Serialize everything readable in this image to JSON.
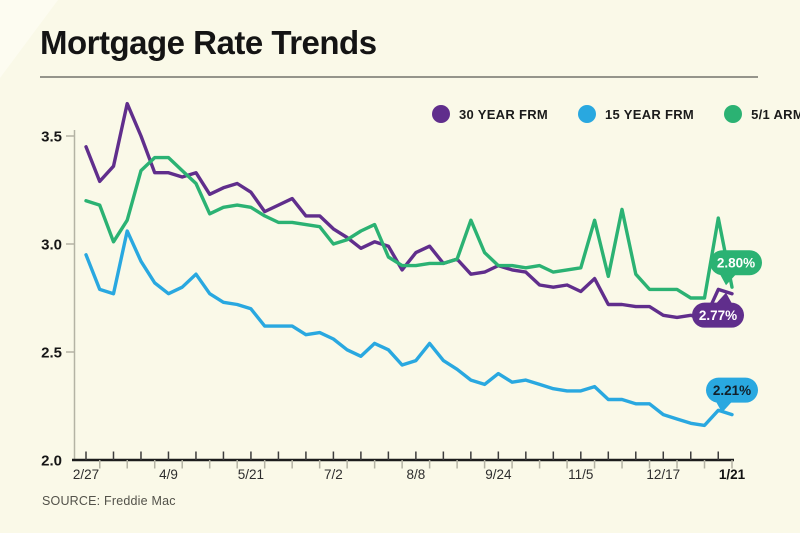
{
  "page": {
    "title": "Mortgage Rate Trends",
    "source": "SOURCE: Freddie Mac"
  },
  "colors": {
    "background": "#FAF9E8",
    "axis_dark": "#1C1C1C",
    "axis_gray": "#B4B3A4",
    "text_dark": "#1B1B1B"
  },
  "legend": [
    {
      "label": "30 YEAR FRM",
      "color": "#602E8C"
    },
    {
      "label": "15 YEAR FRM",
      "color": "#29A8E0"
    },
    {
      "label": "5/1 ARM",
      "color": "#2BB273"
    }
  ],
  "chart_data": {
    "type": "line",
    "title": "Mortgage Rate Trends",
    "xlabel": "",
    "ylabel": "",
    "ylim": [
      2.0,
      3.5
    ],
    "grid": false,
    "legend_position": "top-right",
    "y_ticks": [
      3.5,
      3.0,
      2.5,
      2.0
    ],
    "x_tick_labels": [
      {
        "text": "2/27",
        "week": 0
      },
      {
        "text": "4/9",
        "week": 6
      },
      {
        "text": "5/21",
        "week": 12
      },
      {
        "text": "7/2",
        "week": 18
      },
      {
        "text": "8/8",
        "week": 24
      },
      {
        "text": "9/24",
        "week": 30
      },
      {
        "text": "11/5",
        "week": 36
      },
      {
        "text": "12/17",
        "week": 42
      },
      {
        "text": "1/21",
        "week": 47,
        "bold": true
      }
    ],
    "series": [
      {
        "name": "30 YEAR FRM",
        "color": "#602E8C",
        "callout": {
          "label": "2.77%",
          "position": "below",
          "text_color": "#FFFFFF"
        },
        "values": [
          3.45,
          3.29,
          3.36,
          3.65,
          3.5,
          3.33,
          3.33,
          3.31,
          3.33,
          3.23,
          3.26,
          3.28,
          3.24,
          3.15,
          3.18,
          3.21,
          3.13,
          3.13,
          3.07,
          3.03,
          2.98,
          3.01,
          2.99,
          2.88,
          2.96,
          2.99,
          2.91,
          2.93,
          2.86,
          2.87,
          2.9,
          2.88,
          2.87,
          2.81,
          2.8,
          2.81,
          2.78,
          2.84,
          2.72,
          2.72,
          2.71,
          2.71,
          2.67,
          2.66,
          2.67,
          2.65,
          2.79,
          2.77
        ]
      },
      {
        "name": "15 YEAR FRM",
        "color": "#29A8E0",
        "callout": {
          "label": "2.21%",
          "position": "above",
          "text_color": "#12202A"
        },
        "values": [
          2.95,
          2.79,
          2.77,
          3.06,
          2.92,
          2.82,
          2.77,
          2.8,
          2.86,
          2.77,
          2.73,
          2.72,
          2.7,
          2.62,
          2.62,
          2.62,
          2.58,
          2.59,
          2.56,
          2.51,
          2.48,
          2.54,
          2.51,
          2.44,
          2.46,
          2.54,
          2.46,
          2.42,
          2.37,
          2.35,
          2.4,
          2.36,
          2.37,
          2.35,
          2.33,
          2.32,
          2.32,
          2.34,
          2.28,
          2.28,
          2.26,
          2.26,
          2.21,
          2.19,
          2.17,
          2.16,
          2.23,
          2.21
        ]
      },
      {
        "name": "5/1 ARM",
        "color": "#2BB273",
        "callout": {
          "label": "2.80%",
          "position": "above",
          "text_color": "#FFFFFF"
        },
        "values": [
          3.2,
          3.18,
          3.01,
          3.11,
          3.34,
          3.4,
          3.4,
          3.34,
          3.28,
          3.14,
          3.17,
          3.18,
          3.17,
          3.13,
          3.1,
          3.1,
          3.09,
          3.08,
          3.0,
          3.02,
          3.06,
          3.09,
          2.94,
          2.9,
          2.9,
          2.91,
          2.91,
          2.93,
          3.11,
          2.96,
          2.9,
          2.9,
          2.89,
          2.9,
          2.87,
          2.88,
          2.89,
          3.11,
          2.85,
          3.16,
          2.86,
          2.79,
          2.79,
          2.79,
          2.75,
          2.75,
          3.12,
          2.8
        ]
      }
    ]
  }
}
